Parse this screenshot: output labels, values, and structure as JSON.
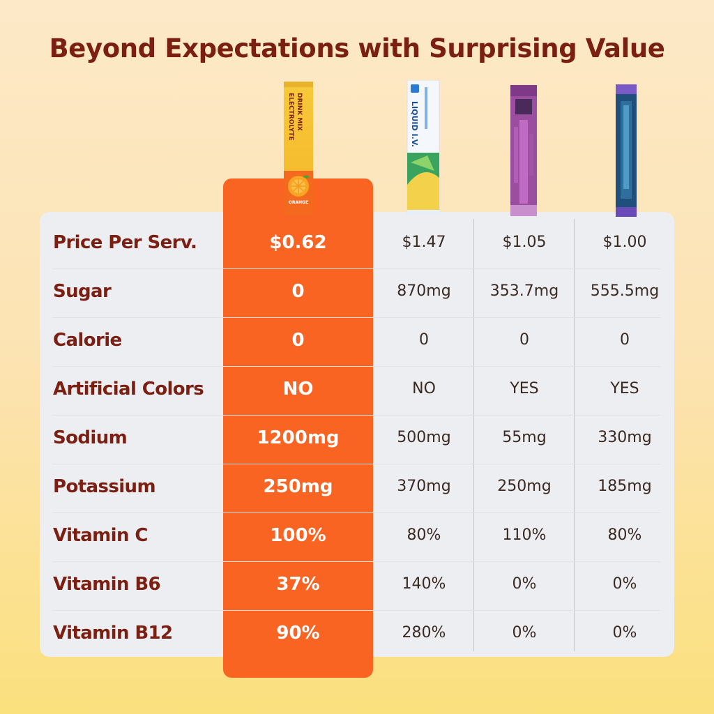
{
  "title": "Beyond Expectations with Surprising Value",
  "featured_product": {
    "name_line1": "ELECTROLYTE",
    "name_line2": "DRINK MIX",
    "flavor": "ORANGE",
    "icon": "orange-stick-pack-icon"
  },
  "competitors": [
    {
      "icon": "blue-stick-pack-icon",
      "text": "LIQUID I.V."
    },
    {
      "icon": "purple-stick-pack-icon"
    },
    {
      "icon": "navy-stick-pack-icon"
    }
  ],
  "colors": {
    "title": "#7a1f12",
    "highlight": "#fa6423",
    "table_bg": "#edeef1"
  },
  "rows": [
    {
      "label": "Price Per Serv.",
      "featured": "$0.62",
      "c1": "$1.47",
      "c2": "$1.05",
      "c3": "$1.00"
    },
    {
      "label": "Sugar",
      "featured": "0",
      "c1": "870mg",
      "c2": "353.7mg",
      "c3": "555.5mg"
    },
    {
      "label": "Calorie",
      "featured": "0",
      "c1": "0",
      "c2": "0",
      "c3": "0"
    },
    {
      "label": "Artificial Colors",
      "featured": "NO",
      "c1": "NO",
      "c2": "YES",
      "c3": "YES"
    },
    {
      "label": "Sodium",
      "featured": "1200mg",
      "c1": "500mg",
      "c2": "55mg",
      "c3": "330mg"
    },
    {
      "label": "Potassium",
      "featured": "250mg",
      "c1": "370mg",
      "c2": "250mg",
      "c3": "185mg"
    },
    {
      "label": "Vitamin C",
      "featured": "100%",
      "c1": "80%",
      "c2": "110%",
      "c3": "80%"
    },
    {
      "label": "Vitamin B6",
      "featured": "37%",
      "c1": "140%",
      "c2": "0%",
      "c3": "0%"
    },
    {
      "label": "Vitamin B12",
      "featured": "90%",
      "c1": "280%",
      "c2": "0%",
      "c3": "0%"
    }
  ]
}
